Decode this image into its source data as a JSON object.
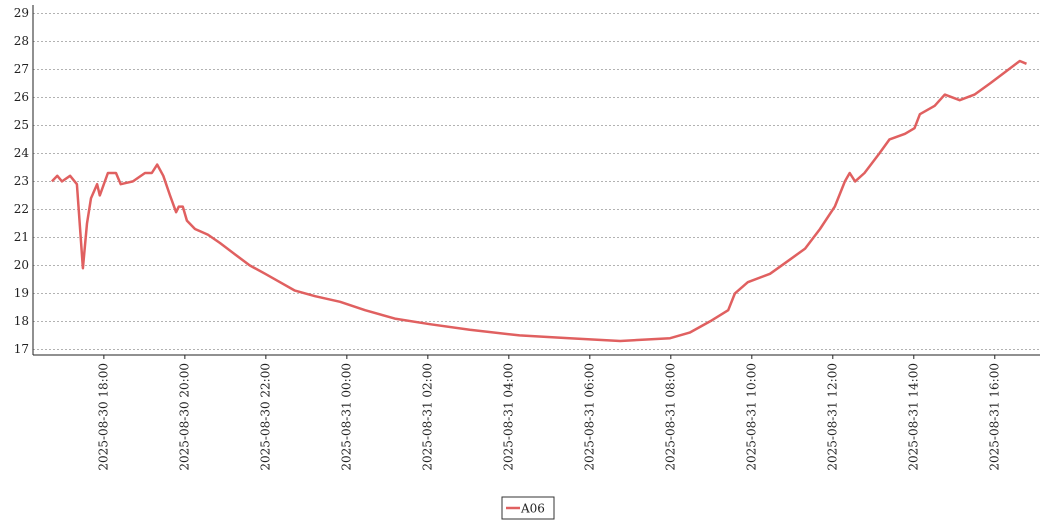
{
  "chart_data": {
    "type": "line",
    "x": [
      "2025-08-30 16:43",
      "2025-08-30 16:51",
      "2025-08-30 16:58",
      "2025-08-30 17:10",
      "2025-08-30 17:20",
      "2025-08-30 17:29",
      "2025-08-30 17:35",
      "2025-08-30 17:41",
      "2025-08-30 17:50",
      "2025-08-30 17:54",
      "2025-08-30 18:06",
      "2025-08-30 18:18",
      "2025-08-30 18:25",
      "2025-08-30 18:43",
      "2025-08-30 19:01",
      "2025-08-30 19:11",
      "2025-08-30 19:19",
      "2025-08-30 19:28",
      "2025-08-30 19:38",
      "2025-08-30 19:47",
      "2025-08-30 19:51",
      "2025-08-30 19:57",
      "2025-08-30 20:03",
      "2025-08-30 20:15",
      "2025-08-30 20:34",
      "2025-08-30 20:52",
      "2025-08-30 21:14",
      "2025-08-30 21:36",
      "2025-08-30 21:59",
      "2025-08-30 22:21",
      "2025-08-30 22:43",
      "2025-08-30 23:13",
      "2025-08-30 23:50",
      "2025-08-31 00:27",
      "2025-08-31 01:11",
      "2025-08-31 02:03",
      "2025-08-31 03:02",
      "2025-08-31 04:16",
      "2025-08-31 05:30",
      "2025-08-31 06:45",
      "2025-08-31 07:59",
      "2025-08-31 08:28",
      "2025-08-31 08:58",
      "2025-08-31 09:25",
      "2025-08-31 09:35",
      "2025-08-31 09:54",
      "2025-08-31 10:27",
      "2025-08-31 10:56",
      "2025-08-31 11:19",
      "2025-08-31 11:41",
      "2025-08-31 12:03",
      "2025-08-31 12:18",
      "2025-08-31 12:25",
      "2025-08-31 12:33",
      "2025-08-31 12:47",
      "2025-08-31 13:09",
      "2025-08-31 13:24",
      "2025-08-31 13:47",
      "2025-08-31 14:01",
      "2025-08-31 14:09",
      "2025-08-31 14:31",
      "2025-08-31 14:46",
      "2025-08-31 15:08",
      "2025-08-31 15:30",
      "2025-08-31 15:53",
      "2025-08-31 16:15",
      "2025-08-31 16:37",
      "2025-08-31 16:47"
    ],
    "series": [
      {
        "name": "A06",
        "color": "#e06060",
        "values": [
          23.0,
          23.2,
          23.0,
          23.2,
          22.9,
          19.9,
          21.5,
          22.4,
          22.9,
          22.5,
          23.3,
          23.3,
          22.9,
          23.0,
          23.3,
          23.3,
          23.6,
          23.2,
          22.5,
          21.9,
          22.1,
          22.1,
          21.6,
          21.3,
          21.1,
          20.8,
          20.4,
          20.0,
          19.7,
          19.4,
          19.1,
          18.9,
          18.7,
          18.4,
          18.1,
          17.9,
          17.7,
          17.5,
          17.4,
          17.3,
          17.4,
          17.6,
          18.0,
          18.4,
          19.0,
          19.4,
          19.7,
          20.2,
          20.6,
          21.3,
          22.1,
          23.0,
          23.3,
          23.0,
          23.3,
          24.0,
          24.5,
          24.7,
          24.9,
          25.4,
          25.7,
          26.1,
          25.9,
          26.1,
          26.5,
          26.9,
          27.3,
          27.2
        ]
      }
    ],
    "xlim": [
      "2025-08-30 16:15",
      "2025-08-31 17:07"
    ],
    "xticks": [
      "2025-08-30 18:00",
      "2025-08-30 20:00",
      "2025-08-30 22:00",
      "2025-08-31 00:00",
      "2025-08-31 02:00",
      "2025-08-31 04:00",
      "2025-08-31 06:00",
      "2025-08-31 08:00",
      "2025-08-31 10:00",
      "2025-08-31 12:00",
      "2025-08-31 14:00",
      "2025-08-31 16:00"
    ],
    "ylim": [
      16.8,
      29.3
    ],
    "yticks": [
      17,
      18,
      19,
      20,
      21,
      22,
      23,
      24,
      25,
      26,
      27,
      28,
      29
    ],
    "grid": true,
    "legend": "bottom"
  }
}
